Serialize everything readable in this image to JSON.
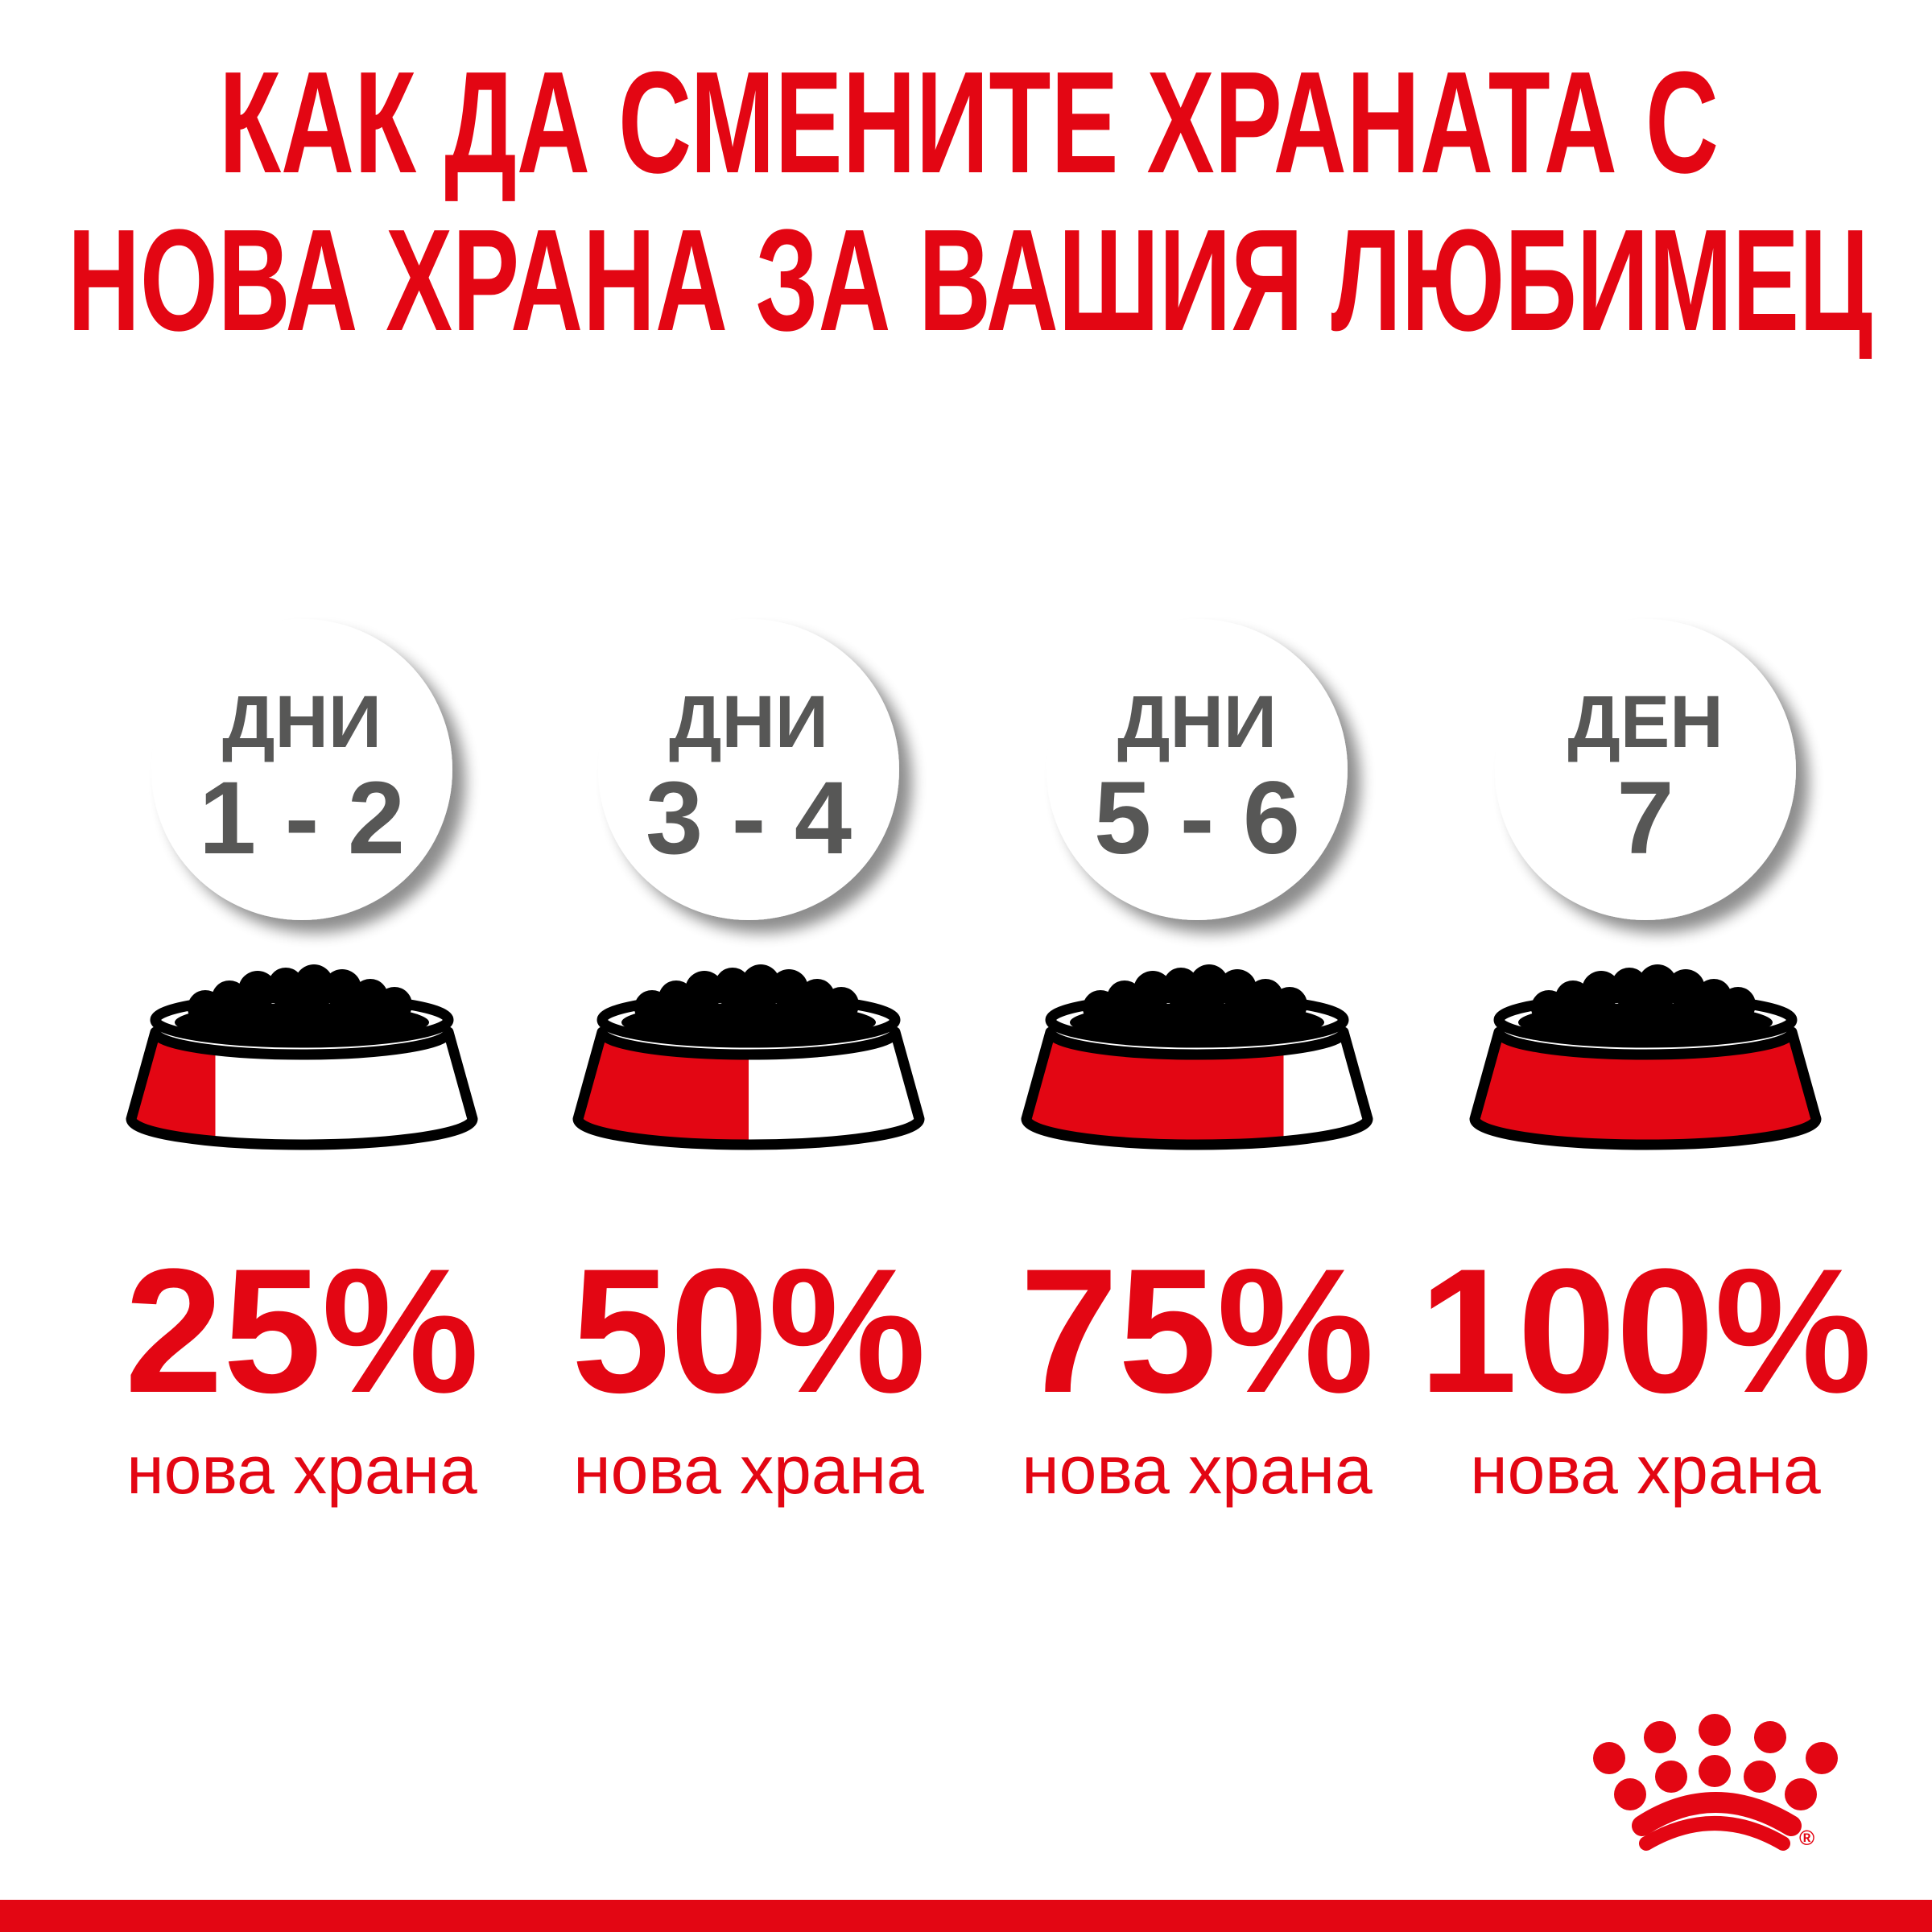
{
  "title": {
    "line1": "КАК ДА СМЕНИТЕ ХРАНАТА С",
    "line2": "НОВА ХРАНА ЗА ВАШИЯ ЛЮБИМЕЦ"
  },
  "steps": [
    {
      "label": "ДНИ",
      "days": "1 - 2",
      "percent": "25%",
      "new_fraction": 0.25,
      "caption": "нова храна"
    },
    {
      "label": "ДНИ",
      "days": "3 - 4",
      "percent": "50%",
      "new_fraction": 0.5,
      "caption": "нова храна"
    },
    {
      "label": "ДНИ",
      "days": "5 - 6",
      "percent": "75%",
      "new_fraction": 0.75,
      "caption": "нова храна"
    },
    {
      "label": "ДЕН",
      "days": "7",
      "percent": "100%",
      "new_fraction": 1.0,
      "caption": "нова храна"
    }
  ],
  "logo": {
    "name": "crown-logo",
    "mark": "®"
  },
  "colors": {
    "brand_red": "#e30613",
    "text_gray": "#575756",
    "food_black": "#000000"
  }
}
